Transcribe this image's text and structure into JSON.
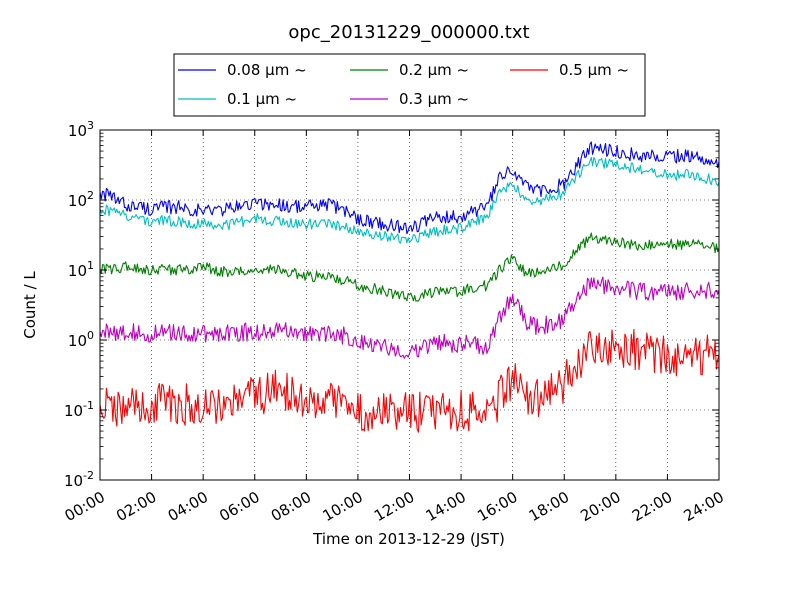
{
  "chart_data": {
    "type": "line",
    "title": "opc_20131229_000000.txt",
    "xlabel": "Time on 2013-12-29 (JST)",
    "ylabel": "Count / L",
    "y_scale": "log",
    "ylim": [
      0.01,
      1000
    ],
    "xlim": [
      "00:00",
      "24:00"
    ],
    "x_tick_labels": [
      "00:00",
      "02:00",
      "04:00",
      "06:00",
      "08:00",
      "10:00",
      "12:00",
      "14:00",
      "16:00",
      "18:00",
      "20:00",
      "22:00",
      "24:00"
    ],
    "y_tick_labels": [
      {
        "base": "10",
        "exp": "-2"
      },
      {
        "base": "10",
        "exp": "-1"
      },
      {
        "base": "10",
        "exp": "0"
      },
      {
        "base": "10",
        "exp": "1"
      },
      {
        "base": "10",
        "exp": "2"
      },
      {
        "base": "10",
        "exp": "3"
      }
    ],
    "grid": true,
    "legend_position": "top-center",
    "x": [
      "00:00",
      "01:00",
      "02:00",
      "03:00",
      "04:00",
      "05:00",
      "06:00",
      "07:00",
      "08:00",
      "09:00",
      "10:00",
      "11:00",
      "12:00",
      "13:00",
      "14:00",
      "15:00",
      "15:30",
      "16:00",
      "16:30",
      "17:00",
      "18:00",
      "19:00",
      "20:00",
      "21:00",
      "22:00",
      "23:00",
      "24:00"
    ],
    "series": [
      {
        "name": "0.08 μm ~",
        "color": "#0000ff",
        "values": [
          130,
          85,
          75,
          80,
          70,
          75,
          90,
          85,
          80,
          85,
          55,
          45,
          40,
          55,
          60,
          80,
          200,
          270,
          160,
          130,
          170,
          550,
          500,
          420,
          430,
          420,
          350
        ]
      },
      {
        "name": "0.1 μm ~",
        "color": "#00bfbf",
        "values": [
          75,
          60,
          50,
          50,
          45,
          45,
          55,
          50,
          45,
          45,
          38,
          30,
          28,
          35,
          40,
          60,
          120,
          170,
          100,
          90,
          130,
          350,
          330,
          260,
          230,
          230,
          180
        ]
      },
      {
        "name": "0.2 μm ~",
        "color": "#008000",
        "values": [
          10,
          11,
          10,
          10,
          11,
          9,
          10,
          10,
          8,
          8,
          6,
          5,
          4,
          5,
          5,
          6,
          10,
          15,
          9,
          9,
          12,
          30,
          25,
          22,
          24,
          23,
          20
        ]
      },
      {
        "name": "0.3 μm ~",
        "color": "#bf00bf",
        "values": [
          1.3,
          1.3,
          1.2,
          1.3,
          1.2,
          1.3,
          1.3,
          1.5,
          1.2,
          1.3,
          1.0,
          0.8,
          0.7,
          0.9,
          0.9,
          0.8,
          2.0,
          4.5,
          1.8,
          1.5,
          2.0,
          6.5,
          5.5,
          5.0,
          5.0,
          5.0,
          5.0
        ]
      },
      {
        "name": "0.5 μm ~",
        "color": "#ff0000",
        "values": [
          0.12,
          0.1,
          0.12,
          0.12,
          0.12,
          0.13,
          0.15,
          0.2,
          0.12,
          0.13,
          0.1,
          0.09,
          0.09,
          0.1,
          0.1,
          0.08,
          0.15,
          0.3,
          0.15,
          0.15,
          0.25,
          0.7,
          0.8,
          0.7,
          0.6,
          0.6,
          0.6
        ]
      }
    ]
  }
}
